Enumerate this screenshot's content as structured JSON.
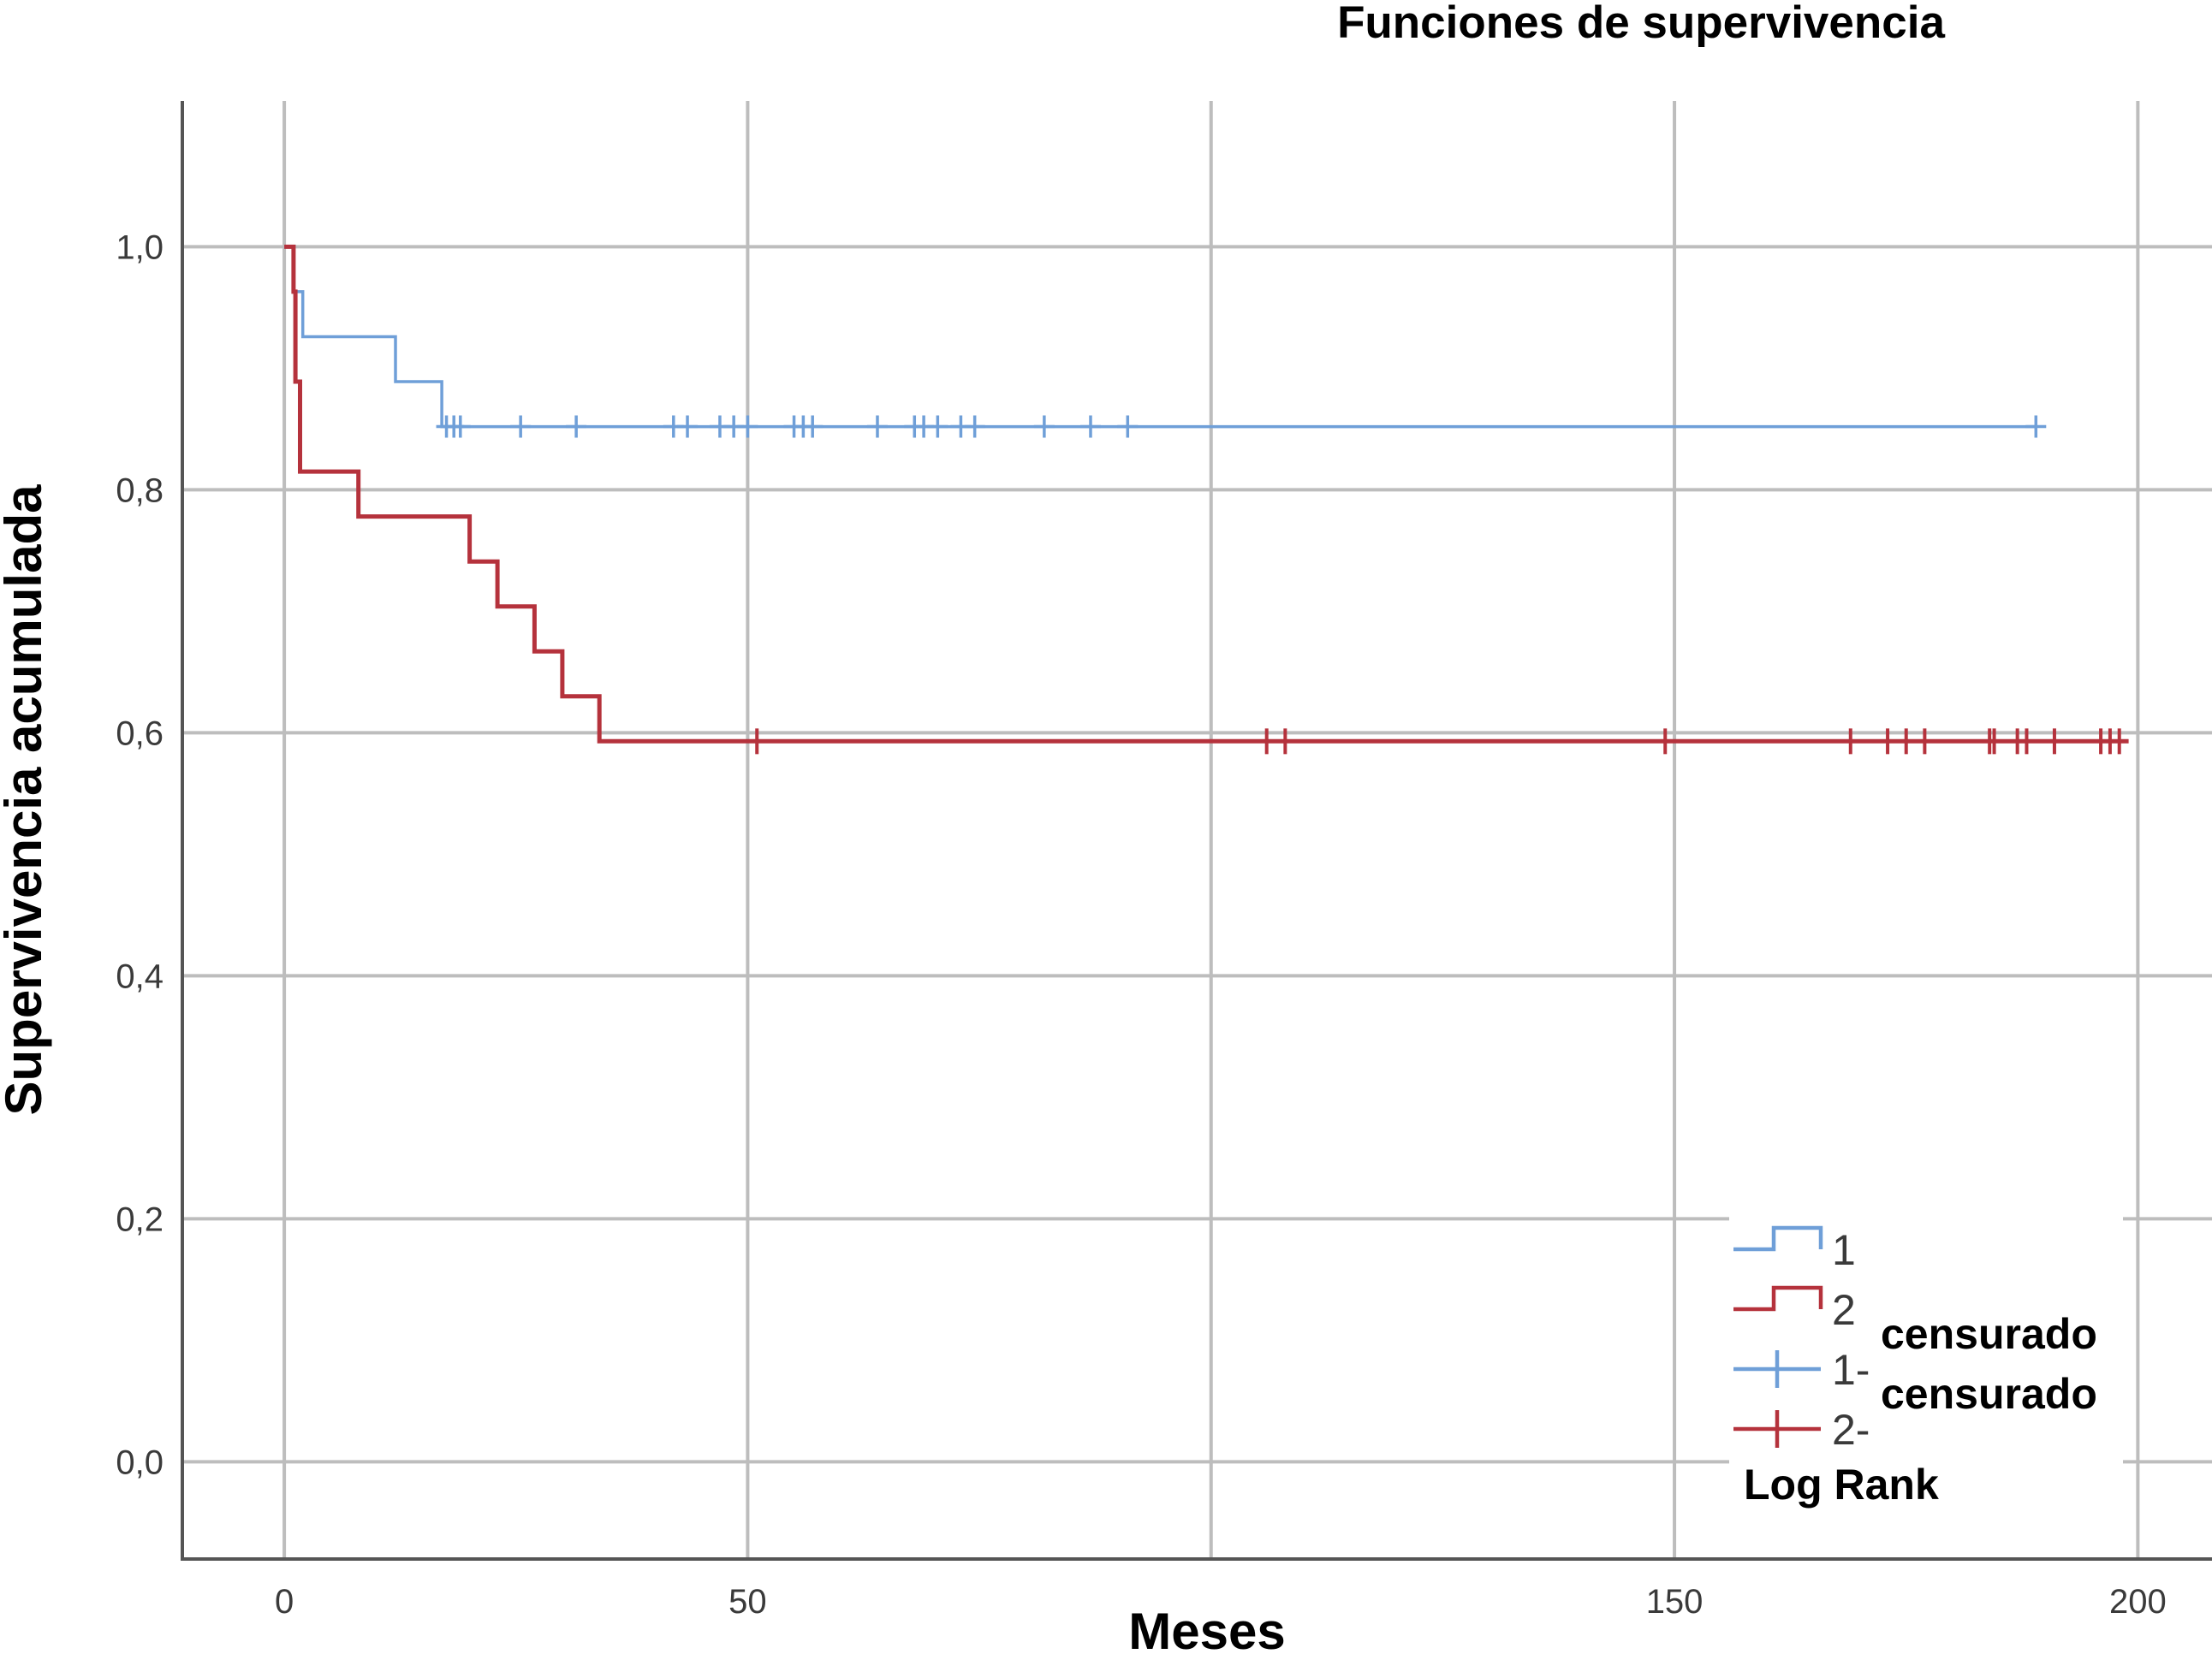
{
  "chart_data": {
    "type": "line",
    "subtype": "kaplan-meier step",
    "title": "Funciones de supervivencia",
    "xlabel": "Meses",
    "ylabel": "Supervivencia acumulada",
    "xlim": [
      -11,
      208
    ],
    "ylim": [
      -0.08,
      1.12
    ],
    "xticks": [
      0,
      50,
      150,
      200
    ],
    "xtick_labels": [
      "0",
      "50",
      "150",
      "200"
    ],
    "x_gridlines": [
      0,
      50,
      100,
      150,
      200
    ],
    "yticks": [
      0.0,
      0.2,
      0.4,
      0.6,
      0.8,
      1.0
    ],
    "ytick_labels": [
      "0,0",
      "0,2",
      "0,4",
      "0,6",
      "0,8",
      "1,0"
    ],
    "grid": true,
    "legend_position": "bottom-right",
    "series": [
      {
        "name": "1",
        "color": "#6f9fd8",
        "steps": [
          [
            0,
            1.0
          ],
          [
            1,
            1.0
          ],
          [
            1,
            0.963
          ],
          [
            2,
            0.963
          ],
          [
            2,
            0.926
          ],
          [
            12,
            0.926
          ],
          [
            12,
            0.889
          ],
          [
            17,
            0.889
          ],
          [
            17,
            0.852
          ],
          [
            189,
            0.852
          ]
        ],
        "censored": [
          17.5,
          18.3,
          19,
          25.5,
          31.5,
          42,
          43.5,
          47,
          48.5,
          50,
          55,
          56,
          57,
          64,
          68,
          69,
          70.5,
          73,
          74.5,
          82,
          87,
          91,
          189
        ]
      },
      {
        "name": "2",
        "color": "#b5323c",
        "steps": [
          [
            0,
            1.0
          ],
          [
            1,
            1.0
          ],
          [
            1,
            0.963
          ],
          [
            1.2,
            0.963
          ],
          [
            1.2,
            0.889
          ],
          [
            1.7,
            0.889
          ],
          [
            1.7,
            0.815
          ],
          [
            8,
            0.815
          ],
          [
            8,
            0.778
          ],
          [
            20,
            0.778
          ],
          [
            20,
            0.741
          ],
          [
            23,
            0.741
          ],
          [
            23,
            0.704
          ],
          [
            27,
            0.704
          ],
          [
            27,
            0.667
          ],
          [
            30,
            0.667
          ],
          [
            30,
            0.63
          ],
          [
            34,
            0.63
          ],
          [
            34,
            0.593
          ],
          [
            199,
            0.593
          ]
        ],
        "censored": [
          51,
          106,
          108,
          149,
          169,
          173,
          175,
          177,
          184,
          184.5,
          187,
          188,
          191,
          196,
          197,
          198
        ]
      }
    ],
    "legend": [
      {
        "symbol": "step",
        "color": "#6f9fd8",
        "label": "1"
      },
      {
        "symbol": "step",
        "color": "#b5323c",
        "label": "2"
      },
      {
        "symbol": "cross",
        "color": "#6f9fd8",
        "label": "1-"
      },
      {
        "symbol": "cross",
        "color": "#b5323c",
        "label": "2-"
      }
    ],
    "legend_notes": [
      "censurado",
      "censurado",
      "Log Rank"
    ]
  }
}
